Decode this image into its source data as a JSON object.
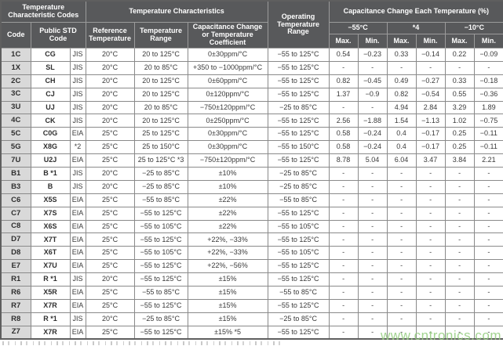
{
  "header": {
    "group_codes": "Temperature Characteristic Codes",
    "group_characteristics": "Temperature Characteristics",
    "operating_range": "Operating Temperature Range",
    "group_cap_change": "Capacitance Change Each Temperature (%)",
    "code": "Code",
    "public_std_code": "Public STD Code",
    "reference_temperature": "Reference Temperature",
    "temperature_range": "Temperature Range",
    "cap_change_or_coeff": "Capacitance Change or Temperature Coefficient",
    "col_neg55": "−55°C",
    "col_star4": "*4",
    "col_neg10": "−10°C",
    "max_label": "Max.",
    "min_label": "Min."
  },
  "rows": [
    [
      "1C",
      "CG",
      "JIS",
      "20°C",
      "20 to 125°C",
      "0±30ppm/°C",
      "−55 to 125°C",
      "0.54",
      "−0.23",
      "0.33",
      "−0.14",
      "0.22",
      "−0.09"
    ],
    [
      "1X",
      "SL",
      "JIS",
      "20°C",
      "20 to 85°C",
      "+350 to −1000ppm/°C",
      "−55 to 125°C",
      "-",
      "-",
      "-",
      "-",
      "-",
      "-"
    ],
    [
      "2C",
      "CH",
      "JIS",
      "20°C",
      "20 to 125°C",
      "0±60ppm/°C",
      "−55 to 125°C",
      "0.82",
      "−0.45",
      "0.49",
      "−0.27",
      "0.33",
      "−0.18"
    ],
    [
      "3C",
      "CJ",
      "JIS",
      "20°C",
      "20 to 125°C",
      "0±120ppm/°C",
      "−55 to 125°C",
      "1.37",
      "−0.9",
      "0.82",
      "−0.54",
      "0.55",
      "−0.36"
    ],
    [
      "3U",
      "UJ",
      "JIS",
      "20°C",
      "20 to 85°C",
      "−750±120ppm/°C",
      "−25 to 85°C",
      "-",
      "-",
      "4.94",
      "2.84",
      "3.29",
      "1.89"
    ],
    [
      "4C",
      "CK",
      "JIS",
      "20°C",
      "20 to 125°C",
      "0±250ppm/°C",
      "−55 to 125°C",
      "2.56",
      "−1.88",
      "1.54",
      "−1.13",
      "1.02",
      "−0.75"
    ],
    [
      "5C",
      "C0G",
      "EIA",
      "25°C",
      "25 to 125°C",
      "0±30ppm/°C",
      "−55 to 125°C",
      "0.58",
      "−0.24",
      "0.4",
      "−0.17",
      "0.25",
      "−0.11"
    ],
    [
      "5G",
      "X8G",
      "*2",
      "25°C",
      "25 to 150°C",
      "0±30ppm/°C",
      "−55 to 150°C",
      "0.58",
      "−0.24",
      "0.4",
      "−0.17",
      "0.25",
      "−0.11"
    ],
    [
      "7U",
      "U2J",
      "EIA",
      "25°C",
      "25 to 125°C *3",
      "−750±120ppm/°C",
      "−55 to 125°C",
      "8.78",
      "5.04",
      "6.04",
      "3.47",
      "3.84",
      "2.21"
    ],
    [
      "B1",
      "B *1",
      "JIS",
      "20°C",
      "−25 to 85°C",
      "±10%",
      "−25 to 85°C",
      "-",
      "-",
      "-",
      "-",
      "-",
      "-"
    ],
    [
      "B3",
      "B",
      "JIS",
      "20°C",
      "−25 to 85°C",
      "±10%",
      "−25 to 85°C",
      "-",
      "-",
      "-",
      "-",
      "-",
      "-"
    ],
    [
      "C6",
      "X5S",
      "EIA",
      "25°C",
      "−55 to 85°C",
      "±22%",
      "−55 to 85°C",
      "-",
      "-",
      "-",
      "-",
      "-",
      "-"
    ],
    [
      "C7",
      "X7S",
      "EIA",
      "25°C",
      "−55 to 125°C",
      "±22%",
      "−55 to 125°C",
      "-",
      "-",
      "-",
      "-",
      "-",
      "-"
    ],
    [
      "C8",
      "X6S",
      "EIA",
      "25°C",
      "−55 to 105°C",
      "±22%",
      "−55 to 105°C",
      "-",
      "-",
      "-",
      "-",
      "-",
      "-"
    ],
    [
      "D7",
      "X7T",
      "EIA",
      "25°C",
      "−55 to 125°C",
      "+22%, −33%",
      "−55 to 125°C",
      "-",
      "-",
      "-",
      "-",
      "-",
      "-"
    ],
    [
      "D8",
      "X6T",
      "EIA",
      "25°C",
      "−55 to 105°C",
      "+22%, −33%",
      "−55 to 105°C",
      "-",
      "-",
      "-",
      "-",
      "-",
      "-"
    ],
    [
      "E7",
      "X7U",
      "EIA",
      "25°C",
      "−55 to 125°C",
      "+22%, −56%",
      "−55 to 125°C",
      "-",
      "-",
      "-",
      "-",
      "-",
      "-"
    ],
    [
      "R1",
      "R *1",
      "JIS",
      "20°C",
      "−55 to 125°C",
      "±15%",
      "−55 to 125°C",
      "-",
      "-",
      "-",
      "-",
      "-",
      "-"
    ],
    [
      "R6",
      "X5R",
      "EIA",
      "25°C",
      "−55 to 85°C",
      "±15%",
      "−55 to 85°C",
      "-",
      "-",
      "-",
      "-",
      "-",
      "-"
    ],
    [
      "R7",
      "X7R",
      "EIA",
      "25°C",
      "−55 to 125°C",
      "±15%",
      "−55 to 125°C",
      "-",
      "-",
      "-",
      "-",
      "-",
      "-"
    ],
    [
      "R8",
      "R *1",
      "JIS",
      "20°C",
      "−25 to 85°C",
      "±15%",
      "−25 to 85°C",
      "-",
      "-",
      "-",
      "-",
      "-",
      "-"
    ],
    [
      "Z7",
      "X7R",
      "EIA",
      "25°C",
      "−55 to 125°C",
      "±15% *5",
      "−55 to 125°C",
      "-",
      "-",
      "-",
      "-",
      "-",
      "-"
    ]
  ],
  "watermark": "www.cntronics.com",
  "colors": {
    "header_bg": "#58595b",
    "code_column_bg": "#d9d9d9",
    "cell_border": "#8a8a8a",
    "watermark_green": "#92cd7d"
  }
}
